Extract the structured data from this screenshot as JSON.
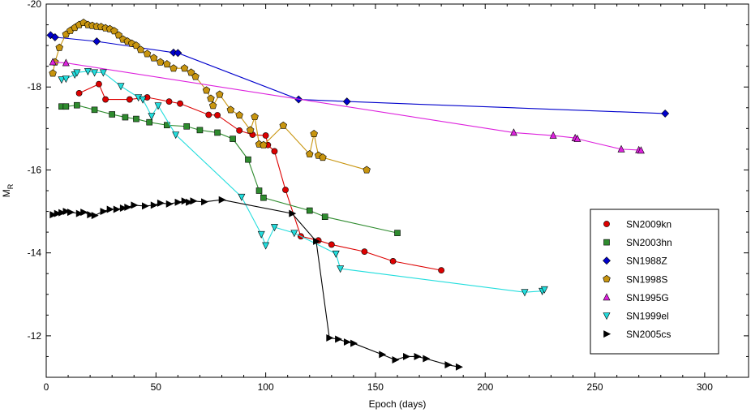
{
  "chart_data": {
    "type": "line",
    "xlabel": "Epoch (days)",
    "ylabel": "M",
    "ylabel_subscript": "R",
    "xlim": [
      0,
      320
    ],
    "ylim": [
      -20,
      -11
    ],
    "y_inverted": true,
    "xticks": [
      "0",
      "50",
      "100",
      "150",
      "200",
      "250",
      "300"
    ],
    "yticks": [
      "-20",
      "-18",
      "-16",
      "-14",
      "-12"
    ],
    "grid": false,
    "legend_position": "right",
    "series": [
      {
        "name": "SN2009kn",
        "color": "#dd0000",
        "marker": "circle",
        "points": [
          [
            15,
            -17.85
          ],
          [
            24,
            -18.07
          ],
          [
            27,
            -17.7
          ],
          [
            38,
            -17.7
          ],
          [
            46,
            -17.75
          ],
          [
            56,
            -17.65
          ],
          [
            61,
            -17.6
          ],
          [
            74,
            -17.33
          ],
          [
            78,
            -17.32
          ],
          [
            88,
            -16.95
          ],
          [
            94,
            -16.85
          ],
          [
            100,
            -16.83
          ],
          [
            101,
            -16.6
          ],
          [
            104,
            -16.45
          ],
          [
            109,
            -15.52
          ],
          [
            116,
            -14.4
          ],
          [
            124,
            -14.3
          ],
          [
            130,
            -14.2
          ],
          [
            145,
            -14.03
          ],
          [
            158,
            -13.8
          ],
          [
            180,
            -13.58
          ]
        ]
      },
      {
        "name": "SN2003hn",
        "color": "#2e8b2e",
        "marker": "square",
        "points": [
          [
            7,
            -17.53
          ],
          [
            9,
            -17.53
          ],
          [
            14,
            -17.56
          ],
          [
            22,
            -17.45
          ],
          [
            30,
            -17.34
          ],
          [
            36,
            -17.27
          ],
          [
            41,
            -17.23
          ],
          [
            47,
            -17.15
          ],
          [
            55,
            -17.08
          ],
          [
            64,
            -17.05
          ],
          [
            70,
            -16.96
          ],
          [
            78,
            -16.9
          ],
          [
            85,
            -16.75
          ],
          [
            92,
            -16.25
          ],
          [
            97,
            -15.5
          ],
          [
            99,
            -15.33
          ],
          [
            120,
            -15.02
          ],
          [
            127,
            -14.87
          ],
          [
            160,
            -14.48
          ]
        ]
      },
      {
        "name": "SN1988Z",
        "color": "#0000cc",
        "marker": "diamond",
        "points": [
          [
            2,
            -19.25
          ],
          [
            4,
            -19.2
          ],
          [
            23,
            -19.1
          ],
          [
            58,
            -18.83
          ],
          [
            60,
            -18.82
          ],
          [
            115,
            -17.7
          ],
          [
            137,
            -17.65
          ],
          [
            282,
            -17.36
          ]
        ]
      },
      {
        "name": "SN1998S",
        "color": "#c8950f",
        "marker": "pentagon",
        "points": [
          [
            3,
            -18.33
          ],
          [
            4,
            -18.6
          ],
          [
            6,
            -18.95
          ],
          [
            9,
            -19.27
          ],
          [
            11,
            -19.36
          ],
          [
            13,
            -19.43
          ],
          [
            15,
            -19.5
          ],
          [
            17,
            -19.55
          ],
          [
            19,
            -19.5
          ],
          [
            21,
            -19.48
          ],
          [
            23,
            -19.46
          ],
          [
            25,
            -19.45
          ],
          [
            27,
            -19.42
          ],
          [
            29,
            -19.4
          ],
          [
            31,
            -19.35
          ],
          [
            33,
            -19.25
          ],
          [
            35,
            -19.15
          ],
          [
            37,
            -19.1
          ],
          [
            39,
            -19.05
          ],
          [
            41,
            -19.0
          ],
          [
            43,
            -18.9
          ],
          [
            46,
            -18.8
          ],
          [
            49,
            -18.7
          ],
          [
            52,
            -18.6
          ],
          [
            55,
            -18.55
          ],
          [
            58,
            -18.45
          ],
          [
            63,
            -18.45
          ],
          [
            66,
            -18.35
          ],
          [
            68,
            -18.25
          ],
          [
            73,
            -17.92
          ],
          [
            75,
            -17.72
          ],
          [
            76,
            -17.55
          ],
          [
            79,
            -17.82
          ],
          [
            84,
            -17.45
          ],
          [
            88,
            -17.32
          ],
          [
            93,
            -16.96
          ],
          [
            95,
            -17.28
          ],
          [
            97,
            -16.62
          ],
          [
            99,
            -16.6
          ],
          [
            108,
            -17.07
          ],
          [
            120,
            -16.38
          ],
          [
            122,
            -16.87
          ],
          [
            124,
            -16.35
          ],
          [
            126,
            -16.3
          ],
          [
            146,
            -16.0
          ]
        ]
      },
      {
        "name": "SN1995G",
        "color": "#dd22dd",
        "marker": "triangle-up",
        "points": [
          [
            3,
            -18.6
          ],
          [
            9,
            -18.58
          ],
          [
            213,
            -16.9
          ],
          [
            231,
            -16.83
          ],
          [
            241,
            -16.77
          ],
          [
            242,
            -16.75
          ],
          [
            262,
            -16.5
          ],
          [
            270,
            -16.48
          ],
          [
            271,
            -16.47
          ]
        ]
      },
      {
        "name": "SN1999el",
        "color": "#22dddd",
        "marker": "triangle-down",
        "points": [
          [
            7,
            -18.18
          ],
          [
            9,
            -18.2
          ],
          [
            13,
            -18.3
          ],
          [
            14,
            -18.35
          ],
          [
            19,
            -18.38
          ],
          [
            22,
            -18.35
          ],
          [
            26,
            -18.35
          ],
          [
            34,
            -18.02
          ],
          [
            42,
            -17.75
          ],
          [
            44,
            -17.7
          ],
          [
            48,
            -17.3
          ],
          [
            51,
            -17.55
          ],
          [
            59,
            -16.85
          ],
          [
            89,
            -15.35
          ],
          [
            98,
            -14.45
          ],
          [
            100,
            -14.18
          ],
          [
            104,
            -14.62
          ],
          [
            113,
            -14.48
          ],
          [
            132,
            -13.98
          ],
          [
            134,
            -13.62
          ],
          [
            218,
            -13.05
          ],
          [
            226,
            -13.08
          ],
          [
            227,
            -13.12
          ]
        ]
      },
      {
        "name": "SN2005cs",
        "color": "#000000",
        "marker": "triangle-right",
        "points": [
          [
            3,
            -14.92
          ],
          [
            5,
            -14.95
          ],
          [
            7,
            -14.97
          ],
          [
            9,
            -15.0
          ],
          [
            11,
            -14.98
          ],
          [
            15,
            -14.95
          ],
          [
            17,
            -14.98
          ],
          [
            20,
            -14.92
          ],
          [
            22,
            -14.9
          ],
          [
            26,
            -15.0
          ],
          [
            29,
            -15.05
          ],
          [
            32,
            -15.05
          ],
          [
            35,
            -15.08
          ],
          [
            37,
            -15.1
          ],
          [
            40,
            -15.15
          ],
          [
            45,
            -15.13
          ],
          [
            49,
            -15.15
          ],
          [
            52,
            -15.2
          ],
          [
            56,
            -15.18
          ],
          [
            60,
            -15.22
          ],
          [
            63,
            -15.25
          ],
          [
            65,
            -15.22
          ],
          [
            67,
            -15.25
          ],
          [
            72,
            -15.23
          ],
          [
            80,
            -15.28
          ],
          [
            112,
            -14.95
          ],
          [
            123,
            -14.28
          ],
          [
            129,
            -11.95
          ],
          [
            133,
            -11.92
          ],
          [
            137,
            -11.85
          ],
          [
            140,
            -11.82
          ],
          [
            153,
            -11.55
          ],
          [
            159,
            -11.42
          ],
          [
            164,
            -11.5
          ],
          [
            169,
            -11.5
          ],
          [
            173,
            -11.45
          ],
          [
            183,
            -11.3
          ],
          [
            188,
            -11.25
          ]
        ]
      }
    ]
  }
}
